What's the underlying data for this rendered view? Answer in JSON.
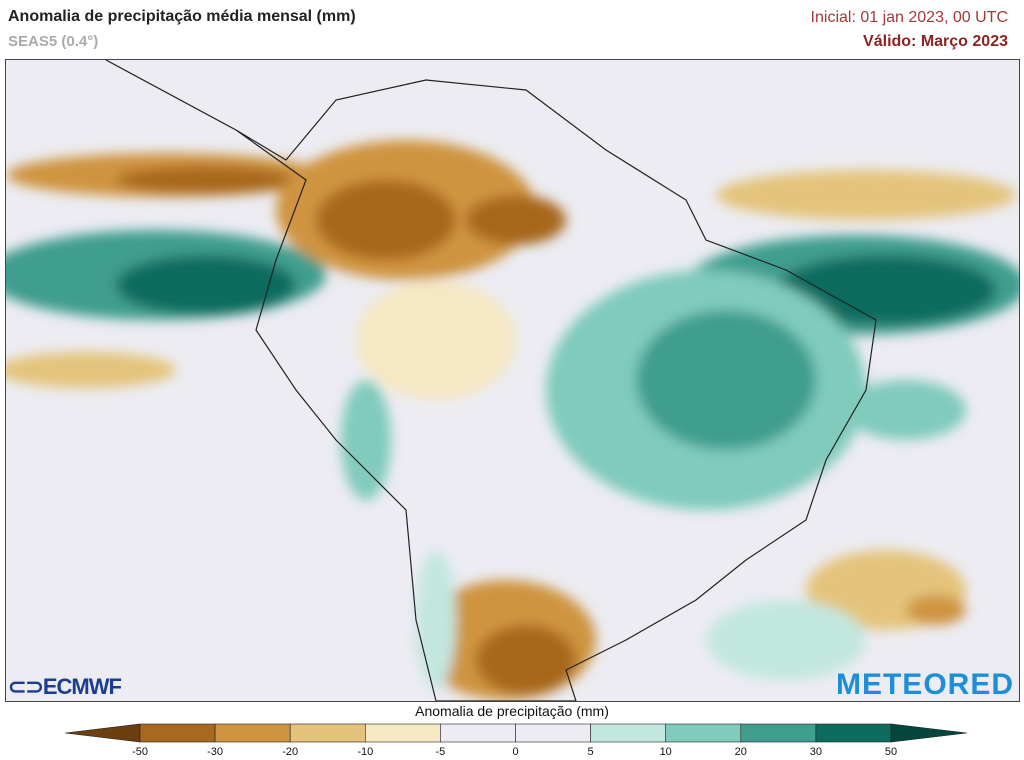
{
  "header": {
    "title": "Anomalia de precipitação média mensal (mm)",
    "model": "SEAS5 (0.4°)",
    "initial": "Inicial: 01 jan 2023, 00 UTC",
    "valid": "Válido: Março 2023"
  },
  "logos": {
    "left": "ECMWF",
    "right": "METEORED"
  },
  "colorbar": {
    "label": "Anomalia de precipitação (mm)",
    "ticks": [
      "-50",
      "-30",
      "-20",
      "-10",
      "-5",
      "0",
      "5",
      "10",
      "20",
      "30",
      "50"
    ],
    "colors": [
      "#6b3f0f",
      "#a8681f",
      "#cf9440",
      "#e4c47c",
      "#f6e8c4",
      "#ececf2",
      "#ececf2",
      "#c2e7df",
      "#80cbbc",
      "#3f9e8e",
      "#0e6c5f",
      "#05463c"
    ]
  }
}
